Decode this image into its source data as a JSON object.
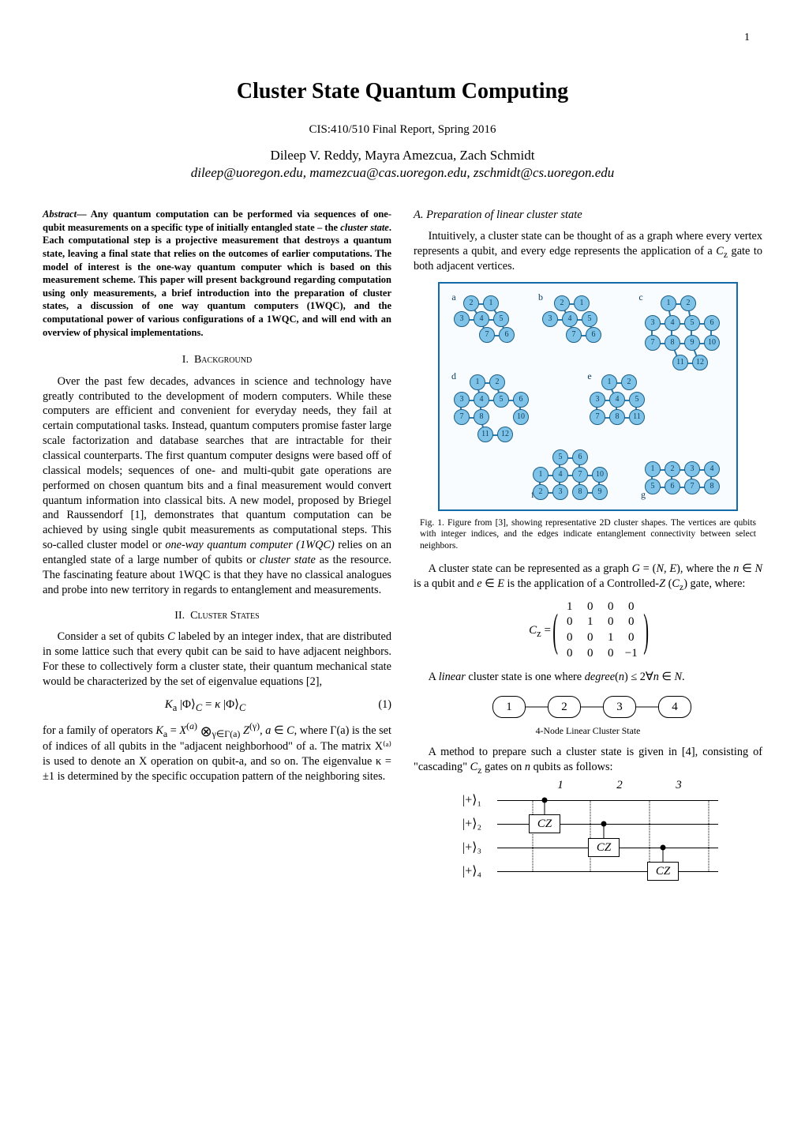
{
  "page_number": "1",
  "title": "Cluster State Quantum Computing",
  "subtitle": "CIS:410/510 Final Report, Spring 2016",
  "authors": "Dileep V. Reddy, Mayra Amezcua, Zach Schmidt",
  "emails": "dileep@uoregon.edu, mamezcua@cas.uoregon.edu, zschmidt@cs.uoregon.edu",
  "abstract_lead": "Abstract",
  "abstract_body": "— Any quantum computation can be performed via sequences of one-qubit measurements on a specific type of initially entangled state – the ",
  "abstract_cluster": "cluster state",
  "abstract_body2": ". Each computational step is a projective measurement that destroys a quantum state, leaving a final state that relies on the outcomes of earlier computations. The model of interest is the one-way quantum computer which is based on this measurement scheme. This paper will present background regarding computation using only measurements, a brief introduction into the preparation of cluster states, a discussion of one way quantum computers (1WQC), and the computational power of various configurations of a 1WQC, and will end with an overview of physical implementations.",
  "sec1_num": "I.",
  "sec1_title": "Background",
  "sec1_p1": "Over the past few decades, advances in science and technology have greatly contributed to the development of modern computers. While these computers are efficient and convenient for everyday needs, they fail at certain computational tasks. Instead, quantum computers promise faster large scale factorization and database searches that are intractable for their classical counterparts. The first quantum computer designs were based off of classical models; sequences of one- and multi-qubit gate operations are performed on chosen quantum bits and a final measurement would convert quantum information into classical bits. A new model, proposed by Briegel and Raussendorf [1], demonstrates that quantum computation can be achieved by using single qubit measurements as computational steps. This so-called cluster model or ",
  "sec1_term": "one-way quantum computer (1WQC)",
  "sec1_p1b": " relies on an entangled state of a large number of qubits or ",
  "sec1_term2": "cluster state",
  "sec1_p1c": " as the resource. The fascinating feature about 1WQC is that they have no classical analogues and probe into new territory in regards to entanglement and measurements.",
  "sec2_num": "II.",
  "sec2_title": "Cluster States",
  "sec2_p1a": "Consider a set of qubits ",
  "sec2_C": "C",
  "sec2_p1b": " labeled by an integer index, that are distributed in some lattice such that every qubit can be said to have adjacent neighbors. For these to collectively form a cluster state, their quantum mechanical state would be characterized by the set of eigenvalue equations [2],",
  "eq1": "Kₐ |Φ⟩𝒸 = κ |Φ⟩𝒸",
  "eq1_num": "(1)",
  "sec2_p2a": "for a family of operators ",
  "sec2_Ka": "Kₐ = X⁽ᵃ⁾ ⊗γ∈Γ(a) Z⁽ᵞ⁾, a ∈ C",
  "sec2_p2b": ", where Γ(a) is the set of indices of all qubits in the \"adjacent neighborhood\" of a. The matrix X⁽ᵃ⁾ is used to denote an X operation on qubit-a, and so on. The eigenvalue κ = ±1 is determined by the specific occupation pattern of the neighboring sites.",
  "subsecA_label": "A. Preparation of linear cluster state",
  "subsecA_p1": "Intuitively, a cluster state can be thought of as a graph where every vertex represents a qubit, and every edge represents the application of a Cᵤ gate to both adjacent vertices.",
  "fig1_caption": "Fig. 1. Figure from [3], showing representative 2D cluster shapes. The vertices are qubits with integer indices, and the edges indicate entanglement connectivity between select neighbors.",
  "subsecA_p2": "A cluster state can be represented as a graph G = (N, E), where the n ∈ N is a qubit and e ∈ E is the application of a Controlled-Z (Cᵤ) gate, where:",
  "cz_label": "Cz =",
  "cz_matrix": [
    [
      "1",
      "0",
      "0",
      "0"
    ],
    [
      "0",
      "1",
      "0",
      "0"
    ],
    [
      "0",
      "0",
      "1",
      "0"
    ],
    [
      "0",
      "0",
      "0",
      "−1"
    ]
  ],
  "subsecA_p3a": "A ",
  "subsecA_linear": "linear",
  "subsecA_p3b": " cluster state is one where degree(n) ≤ 2∀n ∈ N.",
  "lin_nodes": [
    "1",
    "2",
    "3",
    "4"
  ],
  "lin_caption": "4-Node Linear Cluster State",
  "subsecA_p4": "A method to prepare such a cluster state is given in [4], consisting of \"cascading\" Cz gates on n qubits as follows:",
  "circuit": {
    "kets": [
      "|+⟩₁",
      "|+⟩₂",
      "|+⟩₃",
      "|+⟩₄"
    ],
    "steps": [
      "1",
      "2",
      "3"
    ],
    "gate_label": "CZ"
  },
  "shapes_labels": {
    "a": "a",
    "b": "b",
    "c": "c",
    "d": "d",
    "e": "e",
    "f": "f",
    "g": "g"
  },
  "colors": {
    "node_fill": "#7fc4e8",
    "node_border": "#1d5e86",
    "edge": "#2b7aab",
    "frame": "#126aa8",
    "bg": "#ffffff"
  }
}
